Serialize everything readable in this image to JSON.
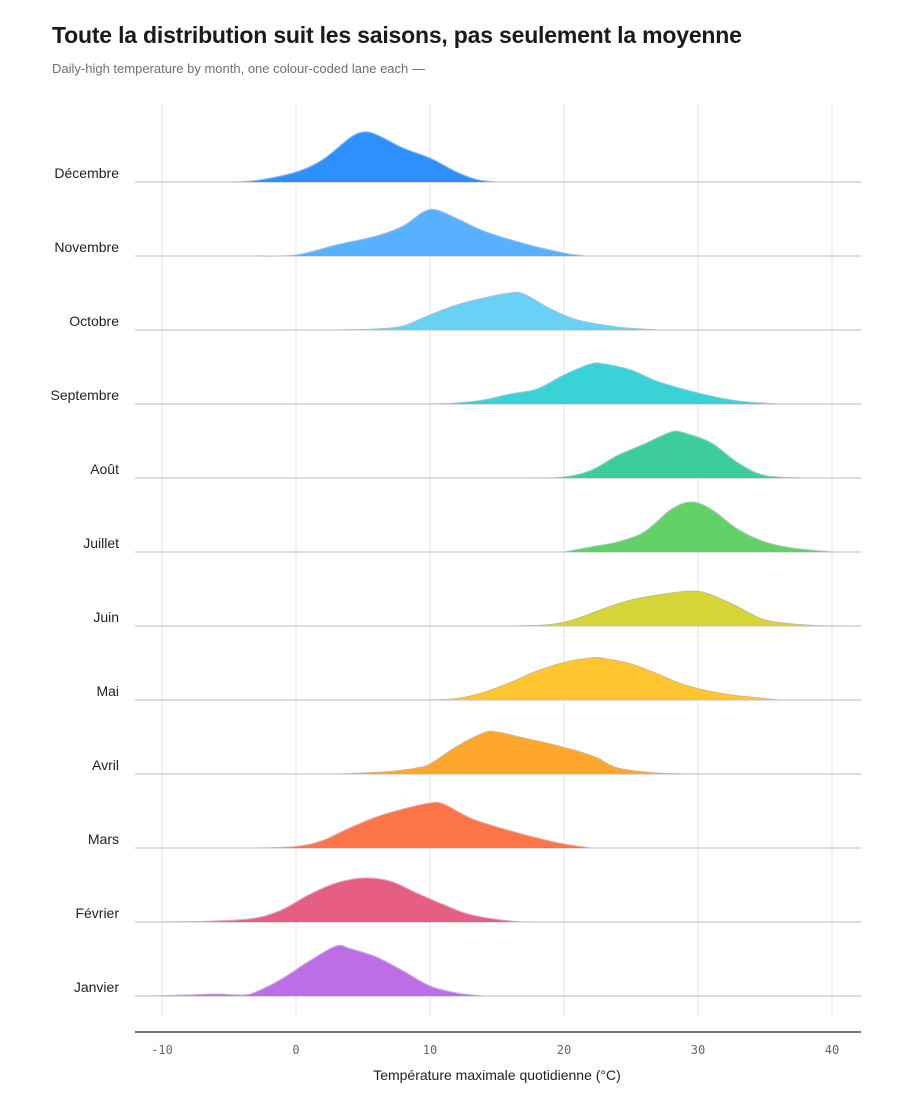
{
  "header": {
    "title": "Toute la distribution suit les saisons, pas seulement la moyenne",
    "subtitle": "Daily-high temperature by month, one colour-coded lane each —"
  },
  "chart_data": {
    "type": "ridgeline",
    "xlabel": "Température maximale quotidienne (°C)",
    "ylabel": "",
    "xlim": [
      -12,
      42
    ],
    "xticks": [
      -10,
      0,
      10,
      20,
      30,
      40
    ],
    "grid": true,
    "series": [
      {
        "name": "Décembre",
        "color": "#1e88ff",
        "points": [
          [
            -5,
            0
          ],
          [
            -3,
            0.03
          ],
          [
            0,
            0.2
          ],
          [
            2,
            0.45
          ],
          [
            4,
            0.88
          ],
          [
            5,
            1.0
          ],
          [
            6,
            0.95
          ],
          [
            8,
            0.68
          ],
          [
            10,
            0.48
          ],
          [
            12,
            0.2
          ],
          [
            13.5,
            0.05
          ],
          [
            15,
            0
          ]
        ]
      },
      {
        "name": "Novembre",
        "color": "#4aabff",
        "points": [
          [
            -3,
            0
          ],
          [
            0,
            0.02
          ],
          [
            3,
            0.22
          ],
          [
            6,
            0.4
          ],
          [
            8,
            0.6
          ],
          [
            9.5,
            0.88
          ],
          [
            10.5,
            0.92
          ],
          [
            12,
            0.75
          ],
          [
            14,
            0.5
          ],
          [
            17,
            0.25
          ],
          [
            20,
            0.06
          ],
          [
            21.5,
            0
          ]
        ]
      },
      {
        "name": "Octobre",
        "color": "#5fcdf5",
        "points": [
          [
            3,
            0
          ],
          [
            6,
            0.02
          ],
          [
            8,
            0.08
          ],
          [
            10,
            0.3
          ],
          [
            12,
            0.5
          ],
          [
            14,
            0.64
          ],
          [
            16,
            0.74
          ],
          [
            17,
            0.72
          ],
          [
            19,
            0.42
          ],
          [
            21,
            0.2
          ],
          [
            24,
            0.06
          ],
          [
            27,
            0
          ]
        ]
      },
      {
        "name": "Septembre",
        "color": "#2acfd4",
        "points": [
          [
            10,
            0
          ],
          [
            12,
            0.02
          ],
          [
            14,
            0.08
          ],
          [
            16,
            0.2
          ],
          [
            18,
            0.3
          ],
          [
            20,
            0.58
          ],
          [
            22,
            0.8
          ],
          [
            23,
            0.8
          ],
          [
            25,
            0.68
          ],
          [
            27,
            0.45
          ],
          [
            30,
            0.22
          ],
          [
            33,
            0.06
          ],
          [
            36,
            0
          ]
        ]
      },
      {
        "name": "Août",
        "color": "#2cc995",
        "points": [
          [
            17,
            0
          ],
          [
            20,
            0.02
          ],
          [
            22,
            0.15
          ],
          [
            24,
            0.45
          ],
          [
            26,
            0.68
          ],
          [
            28,
            0.92
          ],
          [
            29,
            0.9
          ],
          [
            31,
            0.7
          ],
          [
            33,
            0.3
          ],
          [
            35,
            0.05
          ],
          [
            38,
            0
          ]
        ]
      },
      {
        "name": "Juillet",
        "color": "#56cd5c",
        "points": [
          [
            20,
            0
          ],
          [
            22,
            0.1
          ],
          [
            24,
            0.2
          ],
          [
            26,
            0.4
          ],
          [
            28,
            0.85
          ],
          [
            29.5,
            1.0
          ],
          [
            31,
            0.85
          ],
          [
            33,
            0.45
          ],
          [
            35,
            0.2
          ],
          [
            37,
            0.08
          ],
          [
            40,
            0
          ]
        ]
      },
      {
        "name": "Juin",
        "color": "#d2d228",
        "points": [
          [
            16,
            0
          ],
          [
            19,
            0.03
          ],
          [
            21,
            0.15
          ],
          [
            23,
            0.35
          ],
          [
            25,
            0.52
          ],
          [
            27,
            0.62
          ],
          [
            29.5,
            0.7
          ],
          [
            31,
            0.62
          ],
          [
            33,
            0.38
          ],
          [
            35,
            0.12
          ],
          [
            38,
            0.02
          ],
          [
            41,
            0
          ]
        ]
      },
      {
        "name": "Mai",
        "color": "#ffc21f",
        "points": [
          [
            10,
            0
          ],
          [
            12,
            0.03
          ],
          [
            14,
            0.15
          ],
          [
            16,
            0.35
          ],
          [
            18,
            0.58
          ],
          [
            20,
            0.75
          ],
          [
            22,
            0.84
          ],
          [
            23,
            0.83
          ],
          [
            25,
            0.72
          ],
          [
            27,
            0.52
          ],
          [
            29,
            0.3
          ],
          [
            32,
            0.12
          ],
          [
            36,
            0
          ]
        ]
      },
      {
        "name": "Avril",
        "color": "#ff9f1c",
        "points": [
          [
            3,
            0
          ],
          [
            5,
            0.02
          ],
          [
            7,
            0.05
          ],
          [
            9,
            0.12
          ],
          [
            10,
            0.2
          ],
          [
            12,
            0.55
          ],
          [
            14,
            0.82
          ],
          [
            15,
            0.84
          ],
          [
            17,
            0.72
          ],
          [
            19,
            0.6
          ],
          [
            21,
            0.46
          ],
          [
            22.5,
            0.32
          ],
          [
            24,
            0.12
          ],
          [
            27,
            0.02
          ],
          [
            30,
            0
          ]
        ]
      },
      {
        "name": "Mars",
        "color": "#ff6a3c",
        "points": [
          [
            -3,
            0
          ],
          [
            0,
            0.03
          ],
          [
            2,
            0.15
          ],
          [
            4,
            0.4
          ],
          [
            6,
            0.62
          ],
          [
            8,
            0.78
          ],
          [
            10,
            0.9
          ],
          [
            11,
            0.88
          ],
          [
            13,
            0.6
          ],
          [
            15,
            0.42
          ],
          [
            18,
            0.2
          ],
          [
            20,
            0.08
          ],
          [
            22,
            0
          ]
        ]
      },
      {
        "name": "Février",
        "color": "#e4527a",
        "points": [
          [
            -10,
            0
          ],
          [
            -6,
            0.02
          ],
          [
            -3,
            0.08
          ],
          [
            -1,
            0.25
          ],
          [
            1,
            0.55
          ],
          [
            3,
            0.78
          ],
          [
            5,
            0.88
          ],
          [
            7,
            0.82
          ],
          [
            9,
            0.58
          ],
          [
            11,
            0.35
          ],
          [
            13,
            0.15
          ],
          [
            16,
            0.02
          ],
          [
            18,
            0
          ]
        ]
      },
      {
        "name": "Janvier",
        "color": "#b863e5",
        "points": [
          [
            -11,
            0
          ],
          [
            -8,
            0.02
          ],
          [
            -6,
            0.04
          ],
          [
            -4,
            0.02
          ],
          [
            -3,
            0.08
          ],
          [
            -1,
            0.35
          ],
          [
            1,
            0.7
          ],
          [
            3,
            1.0
          ],
          [
            4,
            0.95
          ],
          [
            6,
            0.78
          ],
          [
            8,
            0.5
          ],
          [
            10,
            0.2
          ],
          [
            12,
            0.06
          ],
          [
            14,
            0
          ]
        ]
      }
    ]
  }
}
